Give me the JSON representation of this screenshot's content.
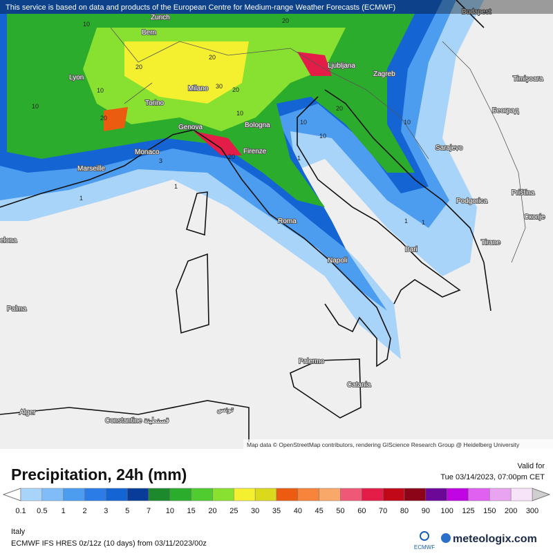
{
  "header": {
    "attribution": "This service is based on data and products of the European Centre for Medium-range Weather Forecasts (ECMWF)"
  },
  "map": {
    "credit": "Map data © OpenStreetMap contributors, rendering GIScience Research Group @ Heidelberg University",
    "cities": [
      "Zurich",
      "Budapest",
      "Bern",
      "Ljubljana",
      "Zagreb",
      "Lyon",
      "Timișoara",
      "Milano",
      "Torino",
      "Београд",
      "Genova",
      "Bologna",
      "Monaco",
      "Firenze",
      "Sarajevo",
      "Marseille",
      "Priština",
      "Podgorica",
      "Скопје",
      "Roma",
      "Bari",
      "Tirane",
      "Napoli",
      "Palma",
      "Palermo",
      "Catania",
      "Alger",
      "Constantine قسنطينة",
      "تونس",
      "elona"
    ],
    "contour_labels": [
      10,
      20,
      20,
      10,
      20,
      30,
      20,
      10,
      20,
      10,
      20,
      10,
      20,
      10,
      1,
      1,
      3,
      1,
      1,
      1,
      10
    ]
  },
  "title": "Precipitation, 24h (mm)",
  "valid_label": "Valid for",
  "valid_time": "Tue 03/14/2023, 07:00pm CET",
  "legend": {
    "ticks": [
      0.1,
      0.5,
      1,
      2,
      3,
      5,
      7,
      10,
      15,
      20,
      25,
      30,
      35,
      40,
      45,
      50,
      60,
      70,
      80,
      90,
      100,
      125,
      150,
      200,
      300
    ],
    "colors": [
      "#a8d4fa",
      "#80bcf8",
      "#4c9cf0",
      "#2c7ce8",
      "#1464d4",
      "#083c98",
      "#1c8a2c",
      "#2cac2c",
      "#50cc30",
      "#88e030",
      "#f4f030",
      "#dcd81c",
      "#ec5c10",
      "#f8843c",
      "#f8a868",
      "#f05878",
      "#e41c48",
      "#c00818",
      "#8c0418",
      "#6c0898",
      "#c004e4",
      "#e060f0",
      "#e8a4f0",
      "#f8e4f8"
    ],
    "under_color": "#ffffff",
    "over_color": "#cfcfcf"
  },
  "footer": {
    "region": "Italy",
    "model": "ECMWF IFS HRES 0z/12z (10 days) from  03/11/2023/00z",
    "ecmwf": "ECMWF",
    "brand": "meteologix.com"
  }
}
